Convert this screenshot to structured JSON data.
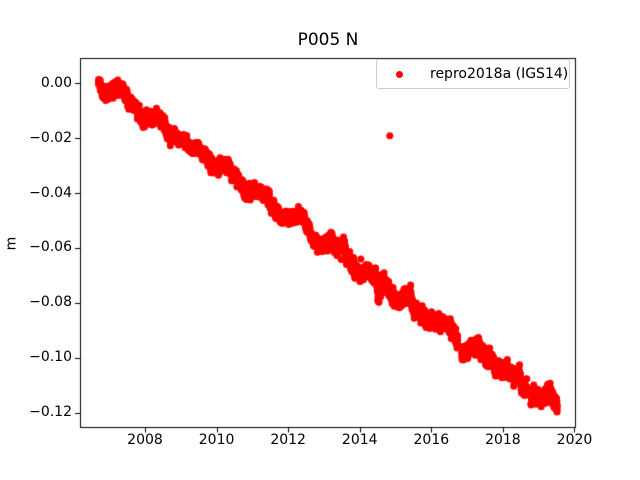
{
  "figure": {
    "background_color": "#ffffff",
    "spine_color": "#000000"
  },
  "chart_data": {
    "type": "scatter",
    "title": "P005 N",
    "xlabel": "",
    "ylabel": "m",
    "grid": false,
    "xlim": [
      2006.184,
      2020.042
    ],
    "ylim": [
      -0.1251,
      0.0091
    ],
    "xticks": [
      2008,
      2010,
      2012,
      2014,
      2016,
      2018,
      2020
    ],
    "xtick_labels": [
      "2008",
      "2010",
      "2012",
      "2014",
      "2016",
      "2018",
      "2020"
    ],
    "yticks": [
      0.0,
      -0.02,
      -0.04,
      -0.06,
      -0.08,
      -0.1,
      -0.12
    ],
    "ytick_labels": [
      "0.00",
      "−0.02",
      "−0.04",
      "−0.06",
      "−0.08",
      "−0.10",
      "−0.12"
    ],
    "legend": {
      "position": "upper right",
      "entries": [
        "repro2018a (IGS14)"
      ],
      "marker_colors": [
        "#ff0000"
      ]
    },
    "series": [
      {
        "name": "repro2018a (IGS14)",
        "color": "#ff0000",
        "marker": "circle",
        "marker_diameter_px": 7,
        "n_points_approx": 4600,
        "x_start": 2006.7,
        "x_end": 2019.52,
        "samples_per_year": 365,
        "trend": {
          "value_at_start_m": 0.001,
          "slope_m_per_year": -0.0093
        },
        "seasonal": {
          "amplitude_m": 0.0017,
          "phase_year_fraction": 0.1
        },
        "noise": {
          "std_m": 0.0009,
          "std_growth_m": 0.0004,
          "ar_coef": 0.97,
          "ar_step_m": 0.0003
        },
        "gaps": [
          [
            2016.74,
            2016.85
          ],
          [
            2018.67,
            2018.78
          ]
        ],
        "dip": {
          "center": 2014.53,
          "half_width_yr": 0.09,
          "depth_m": -0.008
        },
        "outliers": [
          [
            2014.84,
            -0.0192
          ],
          [
            2007.11,
            -0.0055
          ],
          [
            2014.03,
            -0.064
          ],
          [
            2014.68,
            -0.069
          ]
        ],
        "seed": 42
      }
    ]
  }
}
